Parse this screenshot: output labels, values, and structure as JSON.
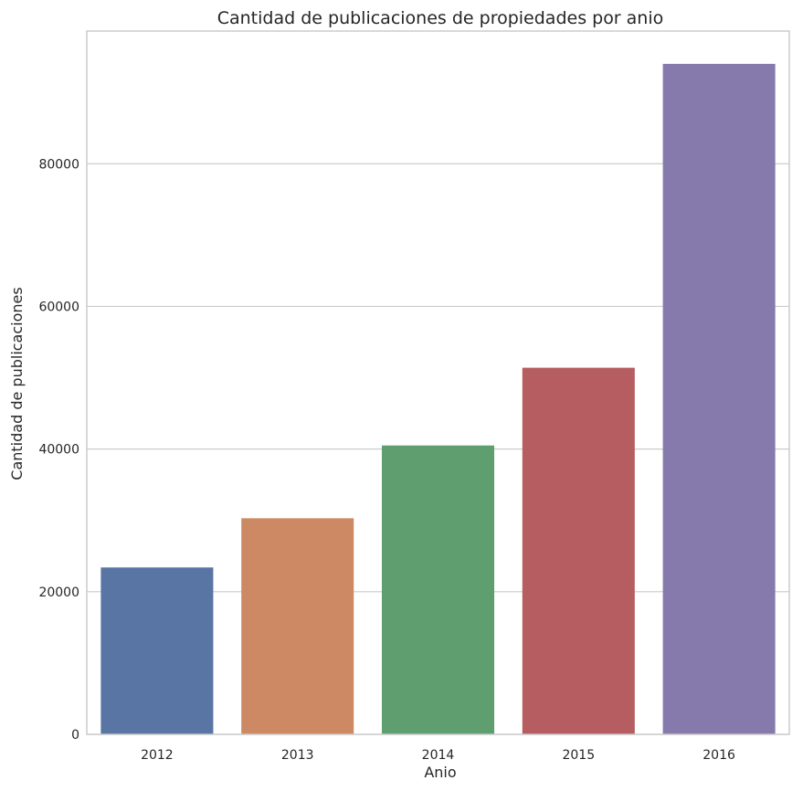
{
  "chart_data": {
    "type": "bar",
    "title": "Cantidad de publicaciones de propiedades por anio",
    "xlabel": "Anio",
    "ylabel": "Cantidad de publicaciones",
    "categories": [
      "2012",
      "2013",
      "2014",
      "2015",
      "2016"
    ],
    "values": [
      23400,
      30300,
      40500,
      51400,
      94000
    ],
    "colors": [
      "#5975a4",
      "#cc8963",
      "#5f9e6e",
      "#b55d60",
      "#857aab"
    ],
    "ylim": [
      0,
      98600
    ],
    "yticks": [
      0,
      20000,
      40000,
      60000,
      80000
    ],
    "grid": "horizontal",
    "legend": "none"
  }
}
